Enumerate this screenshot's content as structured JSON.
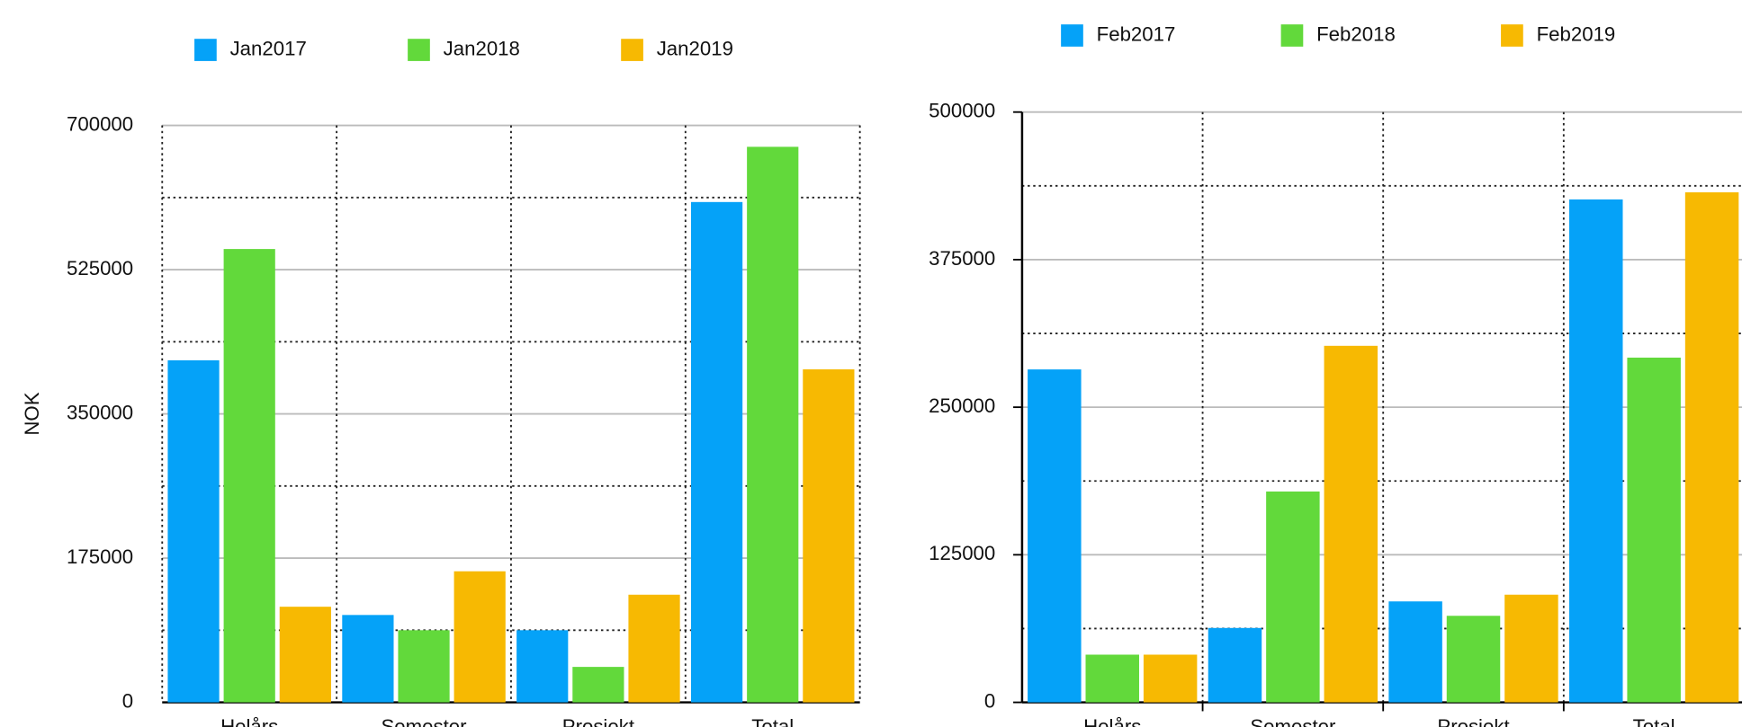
{
  "chart_data": [
    {
      "type": "bar",
      "ylabel": "NOK",
      "categories": [
        "Helårs",
        "Semester",
        "Prosjekt",
        "Total"
      ],
      "series": [
        {
          "name": "Jan2017",
          "color": "#05a2f8",
          "values": [
            415000,
            106000,
            87500,
            607000
          ]
        },
        {
          "name": "Jan2018",
          "color": "#62d93b",
          "values": [
            550000,
            87500,
            43000,
            674000
          ]
        },
        {
          "name": "Jan2019",
          "color": "#f7b902",
          "values": [
            116000,
            159000,
            130600,
            404000
          ]
        }
      ],
      "ylim": [
        0,
        700000
      ],
      "yticks": [
        0,
        175000,
        350000,
        525000,
        700000
      ],
      "grid": true,
      "minor_grid": true
    },
    {
      "type": "bar",
      "categories": [
        "Helårs",
        "Semester",
        "Prosjekt",
        "Total"
      ],
      "series": [
        {
          "name": "Feb2017",
          "color": "#05a2f8",
          "values": [
            282000,
            63000,
            85500,
            426000
          ]
        },
        {
          "name": "Feb2018",
          "color": "#62d93b",
          "values": [
            40400,
            178600,
            73300,
            292000
          ]
        },
        {
          "name": "Feb2019",
          "color": "#f7b902",
          "values": [
            40400,
            302000,
            91200,
            432000
          ]
        }
      ],
      "ylim": [
        0,
        500000
      ],
      "yticks": [
        0,
        125000,
        250000,
        375000,
        500000
      ],
      "grid": true,
      "minor_grid": true
    }
  ]
}
